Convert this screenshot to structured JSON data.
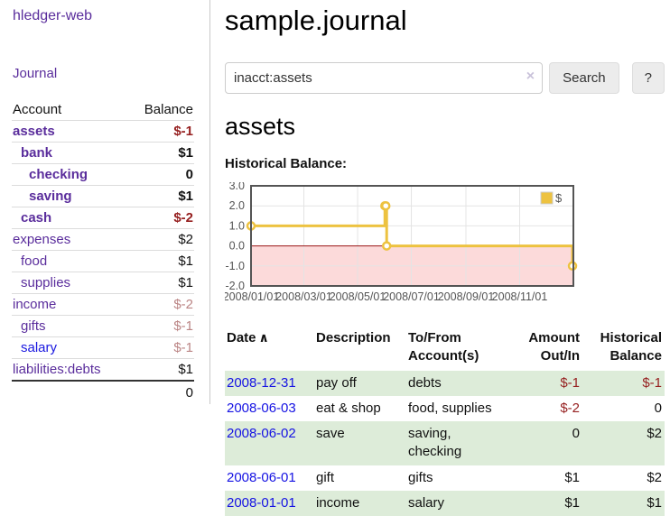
{
  "sidebar": {
    "brand": "hledger-web",
    "journal_link": "Journal",
    "table": {
      "account_header": "Account",
      "balance_header": "Balance",
      "rows": [
        {
          "account": "assets",
          "balance": "$-1",
          "indent": 1,
          "bold": true,
          "balance_class": "negative"
        },
        {
          "account": "bank",
          "balance": "$1",
          "indent": 2,
          "bold": true,
          "balance_class": "normal"
        },
        {
          "account": "checking",
          "balance": "0",
          "indent": 3,
          "bold": true,
          "balance_class": "normal"
        },
        {
          "account": "saving",
          "balance": "$1",
          "indent": 3,
          "bold": true,
          "balance_class": "normal"
        },
        {
          "account": "cash",
          "balance": "$-2",
          "indent": 2,
          "bold": true,
          "balance_class": "negative"
        },
        {
          "account": "expenses",
          "balance": "$2",
          "indent": 1,
          "bold": false,
          "balance_class": "normal"
        },
        {
          "account": "food",
          "balance": "$1",
          "indent": 2,
          "bold": false,
          "balance_class": "normal"
        },
        {
          "account": "supplies",
          "balance": "$1",
          "indent": 2,
          "bold": false,
          "balance_class": "normal"
        },
        {
          "account": "income",
          "balance": "$-2",
          "indent": 1,
          "bold": false,
          "balance_class": "muted-negative"
        },
        {
          "account": "gifts",
          "balance": "$-1",
          "indent": 2,
          "bold": false,
          "balance_class": "muted-negative"
        },
        {
          "account": "salary",
          "balance": "$-1",
          "indent": 2,
          "bold": false,
          "balance_class": "muted-negative",
          "link_blue": true
        },
        {
          "account": "liabilities:debts",
          "balance": "$1",
          "indent": 1,
          "bold": false,
          "balance_class": "normal"
        }
      ],
      "total": "0"
    }
  },
  "header": {
    "title": "sample.journal"
  },
  "search": {
    "value": "inacct:assets",
    "clear_icon": "×",
    "button_label": "Search",
    "help_label": "?"
  },
  "account_page": {
    "title": "assets",
    "chart_label": "Historical Balance:"
  },
  "chart_data": {
    "type": "line",
    "style": "step",
    "title": "Historical Balance",
    "legend_position": "top-right",
    "x_start": "2008-01-01",
    "x_end": "2009-01-01",
    "ylim": [
      -2.0,
      3.0
    ],
    "yticks": [
      3.0,
      2.0,
      1.0,
      0.0,
      -1.0,
      -2.0
    ],
    "xticks": [
      "2008/01/01",
      "2008/03/01",
      "2008/05/01",
      "2008/07/01",
      "2008/09/01",
      "2008/11/01"
    ],
    "series": [
      {
        "name": "$",
        "color": "#edc240",
        "points": [
          {
            "date": "2008-01-01",
            "value": 1
          },
          {
            "date": "2008-06-01",
            "value": 2
          },
          {
            "date": "2008-06-02",
            "value": 2
          },
          {
            "date": "2008-06-03",
            "value": 0
          },
          {
            "date": "2008-12-31",
            "value": -1
          }
        ]
      }
    ],
    "colors": {
      "negative_region": "#fcdada",
      "zero_line": "#991414",
      "gridline": "#e4e4e4",
      "border": "#545454",
      "tick_label": "#545454"
    }
  },
  "register": {
    "sort_icon": "∧",
    "columns": [
      {
        "label": "Date"
      },
      {
        "label": "Description"
      },
      {
        "label": "To/From Account(s)"
      },
      {
        "label": "Amount Out/In"
      },
      {
        "label": "Historical Balance"
      }
    ],
    "rows": [
      {
        "date": "2008-12-31",
        "description": "pay off",
        "accounts": "debts",
        "amount": "$-1",
        "amount_negative": true,
        "balance": "$-1",
        "balance_negative": true
      },
      {
        "date": "2008-06-03",
        "description": "eat & shop",
        "accounts": "food, supplies",
        "amount": "$-2",
        "amount_negative": true,
        "balance": "0",
        "balance_negative": false
      },
      {
        "date": "2008-06-02",
        "description": "save",
        "accounts": "saving, checking",
        "amount": "0",
        "amount_negative": false,
        "balance": "$2",
        "balance_negative": false
      },
      {
        "date": "2008-06-01",
        "description": "gift",
        "accounts": "gifts",
        "amount": "$1",
        "amount_negative": false,
        "balance": "$2",
        "balance_negative": false
      },
      {
        "date": "2008-01-01",
        "description": "income",
        "accounts": "salary",
        "amount": "$1",
        "amount_negative": false,
        "balance": "$1",
        "balance_negative": false
      }
    ]
  },
  "colors": {
    "link_purple": "#5a2d9c",
    "link_blue": "#1512e3",
    "negative": "#962020",
    "muted_negative": "#bb8585",
    "row_green": "#ddecd9",
    "button_bg": "#ececec"
  }
}
